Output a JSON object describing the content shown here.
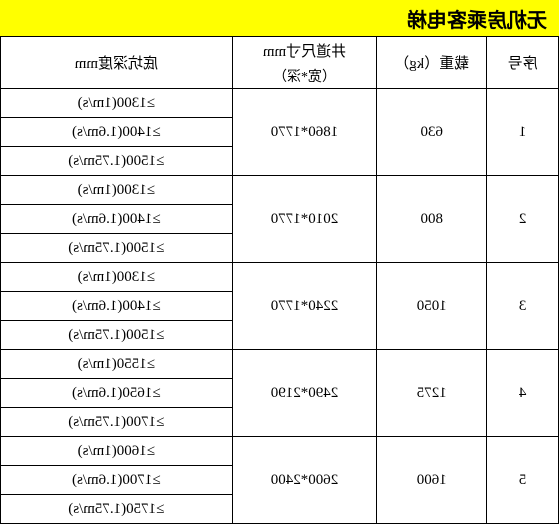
{
  "title": "无机房乘客电梯",
  "headers": {
    "seq": "序号",
    "load": "载重（kg）",
    "dim_top": "井道尺寸mm",
    "dim_bottom": "（宽*深）",
    "pit": "底坑深度mm"
  },
  "rows": [
    {
      "seq": "1",
      "load": "630",
      "dim": "1860*1770",
      "pits": [
        "≥1300(1m/s)",
        "≥1400(1.6m/s)",
        "≥1500(1.75m/s)"
      ]
    },
    {
      "seq": "2",
      "load": "800",
      "dim": "2010*1770",
      "pits": [
        "≥1300(1m/s)",
        "≥1400(1.6m/s)",
        "≥1500(1.75m/s)"
      ]
    },
    {
      "seq": "3",
      "load": "1050",
      "dim": "2240*1770",
      "pits": [
        "≥1300(1m/s)",
        "≥1400(1.6m/s)",
        "≥1500(1.75m/s)"
      ]
    },
    {
      "seq": "4",
      "load": "1275",
      "dim": "2490*2190",
      "pits": [
        "≥1550(1m/s)",
        "≥1650(1.6m/s)",
        "≥1700(1.75m/s)"
      ]
    },
    {
      "seq": "5",
      "load": "1600",
      "dim": "2600*2400",
      "pits": [
        "≥1600(1m/s)",
        "≥1700(1.6m/s)",
        "≥1750(1.75m/s)"
      ]
    }
  ],
  "colors": {
    "title_bg": "#ffff00",
    "border": "#000000",
    "text": "#000000"
  }
}
